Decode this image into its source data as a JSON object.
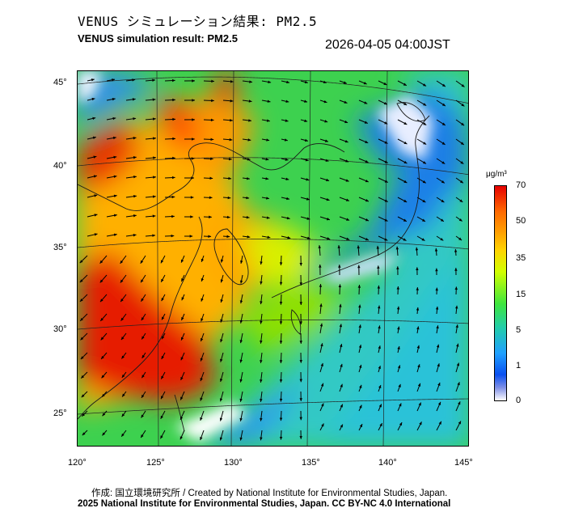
{
  "header": {
    "title_ja": "VENUS シミュレーション結果: PM2.5",
    "title_en": "VENUS simulation result: PM2.5",
    "timestamp": "2026-04-05 04:00JST"
  },
  "map": {
    "lat_labels": [
      "45°",
      "40°",
      "35°",
      "30°",
      "25°"
    ],
    "lon_labels": [
      "120°",
      "125°",
      "130°",
      "135°",
      "140°",
      "145°"
    ]
  },
  "colorbar": {
    "unit": "μg/m³",
    "ticks": [
      "70",
      "50",
      "35",
      "15",
      "5",
      "1",
      "0"
    ],
    "colors": [
      "#e60000",
      "#ff6a00",
      "#ffa200",
      "#ffd400",
      "#d2ff00",
      "#3ee63e",
      "#22cdaa",
      "#1fa0ff",
      "#0a50f0",
      "#ffffff"
    ]
  },
  "footer": {
    "credit_ja": "作成: 国立環境研究所 / Created by National Institute for Environmental Studies, Japan.",
    "credit_en": "2025 National Institute for Environmental Studies, Japan. CC BY-NC 4.0 International"
  }
}
